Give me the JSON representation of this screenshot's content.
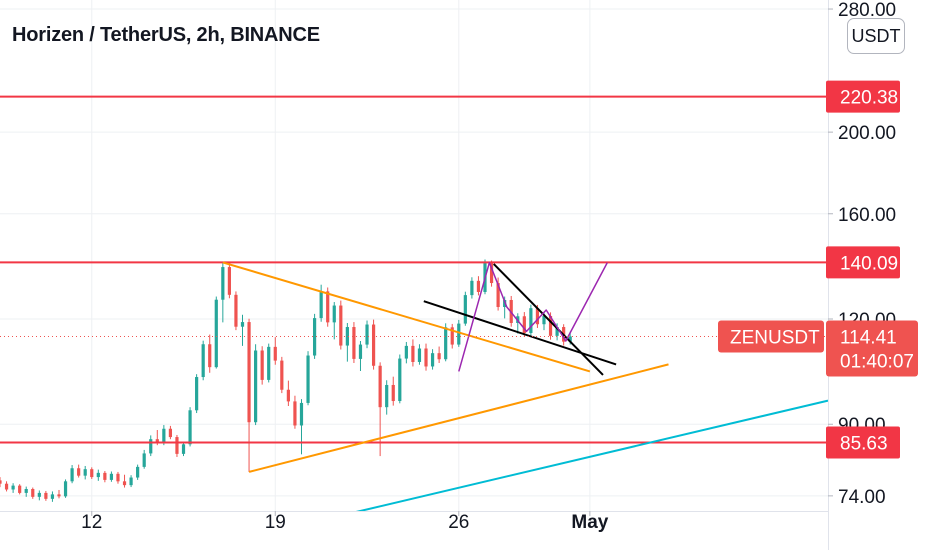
{
  "header": {
    "title": "Horizen / TetherUS, 2h, BINANCE",
    "currency_button": "USDT"
  },
  "colors": {
    "up": "#26a69a",
    "down": "#ef5350",
    "resistance": "#f23645",
    "triangle": "#ff9800",
    "wedge": "#000000",
    "path": "#9c27b0",
    "trend": "#00bcd4",
    "grid": "#eef0f3",
    "axis_text": "#131722"
  },
  "chart_data": {
    "type": "candlestick",
    "symbol": "ZENUSDT",
    "interval": "2h",
    "exchange": "BINANCE",
    "y_scale": "log",
    "ylim": [
      71,
      287
    ],
    "y_ticks": [
      {
        "value": 280,
        "label": "280.00"
      },
      {
        "value": 200,
        "label": "200.00"
      },
      {
        "value": 160,
        "label": "160.00"
      },
      {
        "value": 120,
        "label": "120.00"
      },
      {
        "value": 90,
        "label": "90.00"
      },
      {
        "value": 74,
        "label": "74.00"
      }
    ],
    "x_ticks": [
      {
        "value": "2021-04-12",
        "label": "12",
        "bold": false
      },
      {
        "value": "2021-04-19",
        "label": "19",
        "bold": false
      },
      {
        "value": "2021-04-26",
        "label": "26",
        "bold": false
      },
      {
        "value": "2021-05-01",
        "label": "May",
        "bold": true
      }
    ],
    "xlim": [
      "2021-04-08T12:00",
      "2021-05-10T02:00"
    ],
    "grid": true,
    "price_line": {
      "value": 114.41,
      "symbol_label": "ZENUSDT",
      "price_label": "114.41",
      "countdown": "01:40:07"
    },
    "horizontal_levels": [
      {
        "value": 220.38,
        "label": "220.38"
      },
      {
        "value": 140.09,
        "label": "140.09"
      },
      {
        "value": 85.63,
        "label": "85.63"
      }
    ],
    "trendlines": [
      {
        "color": "orange",
        "points": [
          [
            "2021-04-17T00:00",
            140.1
          ],
          [
            "2021-05-01T00:00",
            104
          ]
        ]
      },
      {
        "color": "orange",
        "points": [
          [
            "2021-04-18T00:00",
            79
          ],
          [
            "2021-05-04T00:00",
            106
          ]
        ]
      },
      {
        "color": "black",
        "points": [
          [
            "2021-04-24T16:00",
            126
          ],
          [
            "2021-05-02T00:00",
            106
          ]
        ]
      },
      {
        "color": "black",
        "points": [
          [
            "2021-04-27T08:00",
            139.5
          ],
          [
            "2021-05-01T12:00",
            103
          ]
        ]
      },
      {
        "color": "cyan",
        "points": [
          [
            "2021-04-22T00:00",
            70.7
          ],
          [
            "2021-05-10T02:00",
            96
          ]
        ]
      },
      {
        "color": "purple",
        "points": [
          [
            "2021-04-26T00:00",
            104
          ],
          [
            "2021-04-27T04:00",
            140
          ],
          [
            "2021-04-27T20:00",
            124
          ],
          [
            "2021-04-28T14:00",
            116
          ],
          [
            "2021-04-29T08:00",
            123
          ],
          [
            "2021-04-30T02:00",
            113
          ],
          [
            "2021-05-01T16:00",
            140
          ]
        ]
      }
    ],
    "candles": [
      [
        "2021-04-08T12:00",
        77.2,
        77.9,
        75.8,
        76.5
      ],
      [
        "2021-04-08T18:00",
        76.5,
        77.0,
        74.9,
        75.3
      ],
      [
        "2021-04-09T00:00",
        75.3,
        76.6,
        74.6,
        76.1
      ],
      [
        "2021-04-09T06:00",
        76.1,
        76.4,
        74.3,
        74.6
      ],
      [
        "2021-04-09T12:00",
        74.6,
        75.9,
        73.8,
        75.4
      ],
      [
        "2021-04-09T18:00",
        75.4,
        75.7,
        73.4,
        73.8
      ],
      [
        "2021-04-10T00:00",
        73.8,
        75.1,
        73.1,
        74.6
      ],
      [
        "2021-04-10T06:00",
        74.6,
        75.0,
        73.0,
        73.4
      ],
      [
        "2021-04-10T12:00",
        73.4,
        74.9,
        72.8,
        74.3
      ],
      [
        "2021-04-10T18:00",
        74.3,
        75.2,
        73.5,
        73.9
      ],
      [
        "2021-04-11T00:00",
        73.9,
        77.4,
        73.6,
        77.0
      ],
      [
        "2021-04-11T06:00",
        77.0,
        80.5,
        76.6,
        79.8
      ],
      [
        "2021-04-11T12:00",
        79.8,
        80.6,
        77.8,
        78.2
      ],
      [
        "2021-04-11T18:00",
        78.2,
        80.3,
        77.4,
        79.6
      ],
      [
        "2021-04-12T00:00",
        79.6,
        80.0,
        77.5,
        77.9
      ],
      [
        "2021-04-12T06:00",
        77.9,
        79.5,
        77.1,
        78.8
      ],
      [
        "2021-04-12T12:00",
        78.8,
        79.2,
        76.8,
        77.3
      ],
      [
        "2021-04-12T18:00",
        77.3,
        79.1,
        76.9,
        78.6
      ],
      [
        "2021-04-13T00:00",
        78.6,
        79.0,
        76.5,
        77.0
      ],
      [
        "2021-04-13T06:00",
        77.0,
        78.4,
        75.7,
        76.2
      ],
      [
        "2021-04-13T12:00",
        76.2,
        78.3,
        75.8,
        77.8
      ],
      [
        "2021-04-13T18:00",
        77.8,
        80.6,
        77.3,
        80.1
      ],
      [
        "2021-04-14T00:00",
        80.1,
        83.9,
        79.7,
        83.1
      ],
      [
        "2021-04-14T06:00",
        83.1,
        87.3,
        82.5,
        86.4
      ],
      [
        "2021-04-14T12:00",
        86.4,
        88.6,
        85.0,
        85.5
      ],
      [
        "2021-04-14T18:00",
        85.5,
        89.8,
        85.0,
        88.9
      ],
      [
        "2021-04-15T00:00",
        88.9,
        89.6,
        86.4,
        86.9
      ],
      [
        "2021-04-15T06:00",
        86.9,
        87.4,
        82.3,
        83.0
      ],
      [
        "2021-04-15T12:00",
        83.0,
        85.8,
        82.5,
        85.2
      ],
      [
        "2021-04-15T18:00",
        85.2,
        94.3,
        84.7,
        93.5
      ],
      [
        "2021-04-16T00:00",
        93.5,
        103.2,
        92.8,
        102.4
      ],
      [
        "2021-04-16T06:00",
        102.4,
        113.1,
        101.5,
        112.0
      ],
      [
        "2021-04-16T12:00",
        112.0,
        115.0,
        103.6,
        105.2
      ],
      [
        "2021-04-16T18:00",
        105.2,
        127.6,
        104.8,
        126.5
      ],
      [
        "2021-04-17T00:00",
        126.5,
        140.1,
        118.9,
        138.3
      ],
      [
        "2021-04-17T06:00",
        138.3,
        139.9,
        127.0,
        128.2
      ],
      [
        "2021-04-17T12:00",
        128.2,
        129.4,
        116.4,
        117.5
      ],
      [
        "2021-04-17T18:00",
        117.5,
        121.4,
        111.5,
        119.0
      ],
      [
        "2021-04-18T00:00",
        119.0,
        120.1,
        79.0,
        90.5
      ],
      [
        "2021-04-18T06:00",
        90.5,
        112.0,
        89.8,
        110.1
      ],
      [
        "2021-04-18T12:00",
        110.1,
        111.4,
        100.3,
        101.6
      ],
      [
        "2021-04-18T18:00",
        101.6,
        112.2,
        100.9,
        111.2
      ],
      [
        "2021-04-19T00:00",
        111.2,
        114.2,
        105.9,
        107.1
      ],
      [
        "2021-04-19T06:00",
        107.1,
        108.2,
        98.0,
        98.9
      ],
      [
        "2021-04-19T12:00",
        98.9,
        101.4,
        94.6,
        95.8
      ],
      [
        "2021-04-19T18:00",
        95.8,
        97.3,
        88.9,
        89.7
      ],
      [
        "2021-04-20T00:00",
        89.7,
        96.4,
        82.9,
        95.4
      ],
      [
        "2021-04-20T06:00",
        95.4,
        109.9,
        94.8,
        108.6
      ],
      [
        "2021-04-20T12:00",
        108.6,
        121.7,
        107.6,
        120.3
      ],
      [
        "2021-04-20T18:00",
        120.3,
        131.8,
        119.1,
        129.4
      ],
      [
        "2021-04-21T00:00",
        129.4,
        130.8,
        117.5,
        118.9
      ],
      [
        "2021-04-21T06:00",
        118.9,
        125.7,
        113.5,
        124.5
      ],
      [
        "2021-04-21T12:00",
        124.5,
        126.2,
        110.4,
        111.6
      ],
      [
        "2021-04-21T18:00",
        111.6,
        118.7,
        106.8,
        117.4
      ],
      [
        "2021-04-22T00:00",
        117.4,
        119.0,
        106.4,
        107.6
      ],
      [
        "2021-04-22T06:00",
        107.6,
        113.0,
        104.1,
        111.9
      ],
      [
        "2021-04-22T12:00",
        111.9,
        119.5,
        110.8,
        118.2
      ],
      [
        "2021-04-22T18:00",
        118.2,
        119.8,
        104.5,
        105.6
      ],
      [
        "2021-04-23T00:00",
        105.6,
        106.6,
        82.5,
        94.3
      ],
      [
        "2021-04-23T06:00",
        94.3,
        101.5,
        92.4,
        100.2
      ],
      [
        "2021-04-23T12:00",
        100.2,
        102.5,
        94.7,
        95.9
      ],
      [
        "2021-04-23T18:00",
        95.9,
        108.9,
        95.3,
        107.7
      ],
      [
        "2021-04-24T00:00",
        107.7,
        112.7,
        106.3,
        111.5
      ],
      [
        "2021-04-24T06:00",
        111.5,
        113.5,
        105.4,
        106.7
      ],
      [
        "2021-04-24T12:00",
        106.7,
        112.0,
        105.9,
        110.7
      ],
      [
        "2021-04-24T18:00",
        110.7,
        112.2,
        104.2,
        105.4
      ],
      [
        "2021-04-25T00:00",
        105.4,
        110.5,
        104.5,
        109.3
      ],
      [
        "2021-04-25T06:00",
        109.3,
        111.3,
        106.4,
        107.5
      ],
      [
        "2021-04-25T12:00",
        107.5,
        118.6,
        106.9,
        117.3
      ],
      [
        "2021-04-25T18:00",
        117.3,
        118.4,
        110.7,
        111.9
      ],
      [
        "2021-04-26T00:00",
        111.9,
        119.7,
        111.2,
        118.5
      ],
      [
        "2021-04-26T06:00",
        118.5,
        129.3,
        117.8,
        128.1
      ],
      [
        "2021-04-26T12:00",
        128.1,
        134.5,
        126.9,
        133.2
      ],
      [
        "2021-04-26T18:00",
        133.2,
        134.9,
        128.0,
        129.2
      ],
      [
        "2021-04-27T00:00",
        129.2,
        141.2,
        128.4,
        139.8
      ],
      [
        "2021-04-27T06:00",
        139.8,
        140.8,
        131.1,
        132.4
      ],
      [
        "2021-04-27T12:00",
        132.4,
        134.4,
        122.8,
        124.0
      ],
      [
        "2021-04-27T18:00",
        124.0,
        127.6,
        120.2,
        126.4
      ],
      [
        "2021-04-28T00:00",
        126.4,
        127.8,
        117.5,
        118.7
      ],
      [
        "2021-04-28T06:00",
        118.7,
        121.9,
        115.3,
        120.9
      ],
      [
        "2021-04-28T12:00",
        120.9,
        122.3,
        114.3,
        115.5
      ],
      [
        "2021-04-28T18:00",
        115.5,
        124.8,
        114.8,
        123.6
      ],
      [
        "2021-04-29T00:00",
        123.6,
        124.7,
        117.1,
        118.3
      ],
      [
        "2021-04-29T06:00",
        118.3,
        122.1,
        116.4,
        121.0
      ],
      [
        "2021-04-29T12:00",
        121.0,
        122.2,
        113.4,
        114.6
      ],
      [
        "2021-04-29T18:00",
        114.6,
        118.6,
        113.2,
        117.4
      ],
      [
        "2021-04-30T00:00",
        117.4,
        118.3,
        111.6,
        112.8
      ],
      [
        "2021-04-30T06:00",
        112.8,
        115.9,
        111.9,
        114.41
      ]
    ]
  }
}
